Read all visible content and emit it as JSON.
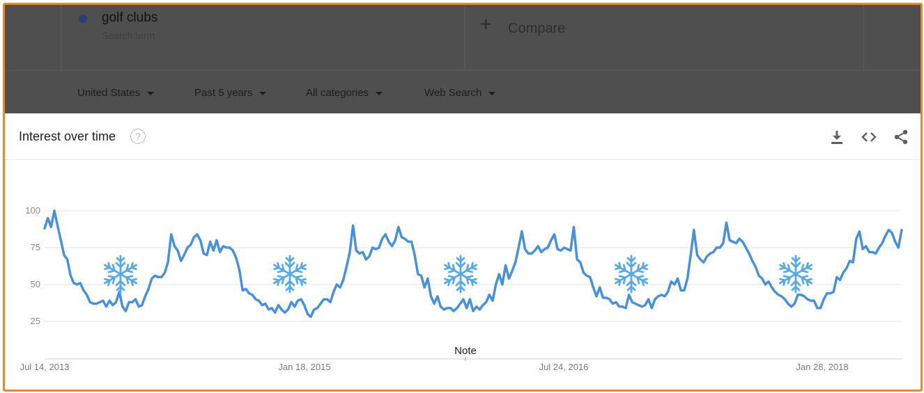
{
  "search": {
    "term": "golf clubs",
    "term_caption": "Search term",
    "compare_plus": "+",
    "compare_label": "Compare"
  },
  "filters": {
    "region": "United States",
    "time_range": "Past 5 years",
    "category": "All categories",
    "search_type": "Web Search"
  },
  "card": {
    "title": "Interest over time",
    "help_glyph": "?",
    "actions": [
      "download-icon",
      "embed-icon",
      "share-icon"
    ]
  },
  "colors": {
    "series": "#4a90d9",
    "snowflake": "#5aa9e0",
    "frame": "#e8892b",
    "overlay": "#4f4f4f"
  },
  "chart_data": {
    "type": "line",
    "y_ticks": [
      25,
      50,
      75,
      100
    ],
    "ylim": [
      0,
      100
    ],
    "x_tick_labels": [
      "Jul 14, 2013",
      "Jan 18, 2015",
      "Jul 24, 2016",
      "Jan 28, 2018"
    ],
    "note_label": "Note",
    "winter_markers": 5,
    "grid": true,
    "series": [
      {
        "color": "#4a90d9",
        "values": [
          88,
          95,
          89,
          100,
          90,
          80,
          70,
          67,
          56,
          51,
          50,
          51,
          46,
          43,
          38,
          37,
          37,
          38,
          39,
          35,
          39,
          36,
          38,
          45,
          35,
          32,
          38,
          38,
          40,
          35,
          36,
          42,
          47,
          54,
          56,
          55,
          55,
          58,
          65,
          84,
          76,
          73,
          66,
          70,
          75,
          77,
          82,
          84,
          80,
          71,
          70,
          79,
          73,
          80,
          72,
          76,
          75,
          75,
          73,
          68,
          60,
          46,
          47,
          44,
          43,
          40,
          39,
          36,
          37,
          33,
          34,
          31,
          36,
          33,
          31,
          33,
          38,
          35,
          39,
          40,
          36,
          30,
          28,
          33,
          34,
          37,
          40,
          40,
          38,
          45,
          50,
          48,
          53,
          62,
          72,
          90,
          73,
          71,
          72,
          67,
          69,
          75,
          74,
          75,
          81,
          84,
          79,
          76,
          80,
          89,
          82,
          81,
          79,
          79,
          70,
          57,
          56,
          48,
          54,
          42,
          37,
          42,
          35,
          33,
          34,
          34,
          32,
          34,
          37,
          40,
          34,
          40,
          32,
          35,
          33,
          36,
          38,
          43,
          39,
          50,
          57,
          50,
          63,
          54,
          59,
          65,
          75,
          86,
          74,
          71,
          71,
          73,
          76,
          72,
          74,
          75,
          80,
          84,
          74,
          73,
          75,
          74,
          73,
          89,
          67,
          65,
          58,
          56,
          55,
          48,
          42,
          48,
          41,
          41,
          40,
          37,
          38,
          35,
          35,
          34,
          43,
          38,
          37,
          36,
          35,
          36,
          40,
          34,
          40,
          42,
          43,
          42,
          45,
          52,
          50,
          54,
          46,
          46,
          54,
          70,
          87,
          70,
          67,
          65,
          69,
          71,
          72,
          75,
          75,
          78,
          92,
          80,
          79,
          78,
          81,
          79,
          75,
          71,
          66,
          62,
          56,
          54,
          50,
          52,
          48,
          45,
          43,
          42,
          40,
          37,
          35,
          37,
          43,
          43,
          42,
          40,
          39,
          39,
          34,
          34,
          40,
          44,
          44,
          45,
          55,
          53,
          58,
          61,
          66,
          65,
          81,
          86,
          74,
          76,
          72,
          72,
          71,
          75,
          78,
          83,
          87,
          85,
          79,
          75,
          87
        ]
      }
    ]
  }
}
